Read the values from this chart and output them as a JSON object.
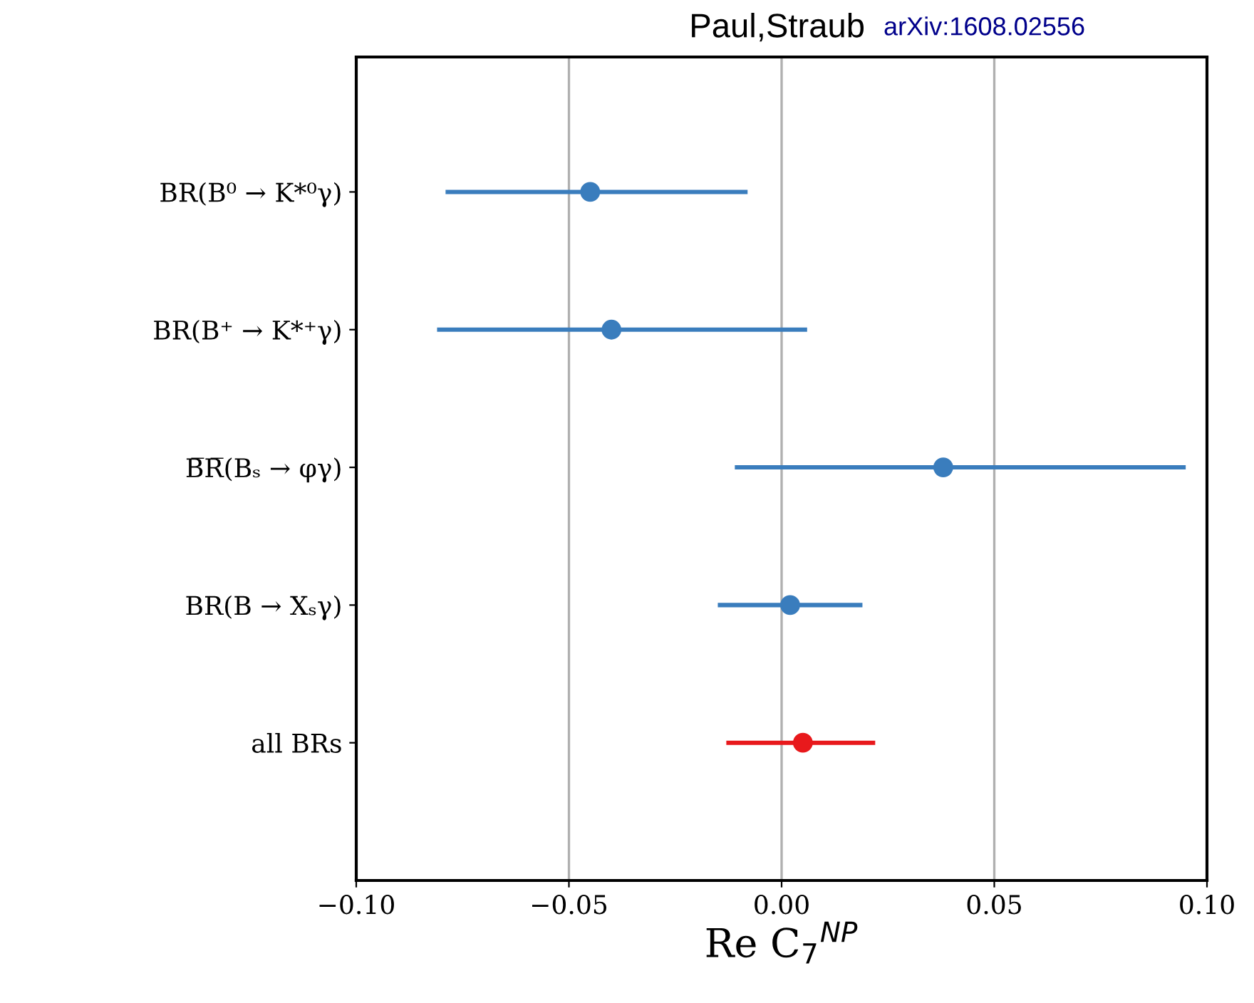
{
  "chart_data": {
    "type": "scatter",
    "title": "Paul,Straub",
    "annotations": [
      "arXiv:1608.02556"
    ],
    "xlabel": "Re C$_{7}$$^{NP}$",
    "orientation": "horizontal",
    "categories": [
      "BR(B⁰ → K*⁰γ)",
      "BR(B⁺ → K*⁺γ)",
      "B̅R̅(Bₛ → φγ)",
      "BR(B → Xₛγ)",
      "all BRs"
    ],
    "values": [
      -0.045,
      -0.04,
      0.038,
      0.002,
      0.005
    ],
    "errors": [
      [
        -0.079,
        -0.008
      ],
      [
        -0.081,
        0.006
      ],
      [
        -0.011,
        0.095
      ],
      [
        -0.015,
        0.019
      ],
      [
        -0.013,
        0.022
      ]
    ],
    "colors": [
      "#3a7dbd",
      "#3a7dbd",
      "#3a7dbd",
      "#3a7dbd",
      "#e8191c"
    ],
    "xlim": [
      -0.1,
      0.1
    ],
    "xticks": [
      {
        "value": -0.1,
        "label": "−0.10"
      },
      {
        "value": -0.05,
        "label": "−0.05"
      },
      {
        "value": 0,
        "label": "0.00"
      },
      {
        "value": 0.05,
        "label": "0.05"
      },
      {
        "value": 0.1,
        "label": "0.10"
      }
    ],
    "grid": "x",
    "marker": "circle"
  }
}
